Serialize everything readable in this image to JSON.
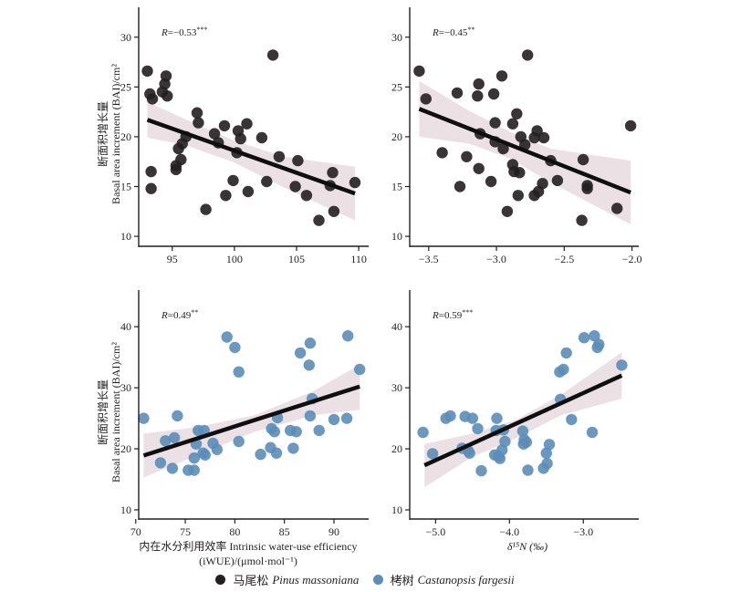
{
  "colors": {
    "pinus": "#231f20",
    "castanopsis": "#5b8db8",
    "band": "#e8dcdf",
    "line": "#0f0f0f",
    "axis": "#231f20"
  },
  "legend": [
    {
      "label_cn": "马尾松",
      "label_latin": "Pinus massoniana",
      "color_key": "pinus"
    },
    {
      "label_cn": "栲树",
      "label_latin": "Castanopsis fargesii",
      "color_key": "castanopsis"
    }
  ],
  "ylabel_cn": "断面积增长量",
  "ylabel_en": "Basal area increment (BAI)/cm²",
  "xlabel_bottom_left_line1": "内在水分利用效率 Intrinsic water-use efficiency",
  "xlabel_bottom_left_line2": "(iWUE)/(μmol·mol⁻¹)",
  "xlabel_bottom_right": "δ¹⁵N (‰)",
  "chart_data": [
    {
      "id": "top-left",
      "type": "scatter",
      "species": "Pinus massoniana",
      "color_key": "pinus",
      "annotation": "R=−0.53***",
      "r_text": "=−0.53",
      "stars": "***",
      "xlabel": "",
      "ylabel": "Basal area increment (BAI)/cm²",
      "xlim": [
        92.3,
        110.8
      ],
      "ylim": [
        9,
        33
      ],
      "xticks": [
        95,
        100,
        105,
        110
      ],
      "xtick_labels": [
        "95",
        "100",
        "105",
        "110"
      ],
      "yticks": [
        10,
        15,
        20,
        25,
        30
      ],
      "ytick_labels": [
        "10",
        "15",
        "20",
        "25",
        "30"
      ],
      "fit": {
        "x": [
          93.0,
          109.7
        ],
        "y": [
          21.7,
          14.3
        ]
      },
      "ci_band": {
        "x": [
          93.0,
          96.0,
          100.0,
          104.0,
          109.7
        ],
        "upper": [
          23.5,
          21.8,
          19.6,
          18.0,
          17.0
        ],
        "lower": [
          19.9,
          19.2,
          17.4,
          14.9,
          11.6
        ]
      },
      "points": [
        [
          93.0,
          26.6
        ],
        [
          93.2,
          24.3
        ],
        [
          93.4,
          23.8
        ],
        [
          93.3,
          16.5
        ],
        [
          93.3,
          14.8
        ],
        [
          94.2,
          24.5
        ],
        [
          94.4,
          25.3
        ],
        [
          94.5,
          26.1
        ],
        [
          94.6,
          24.1
        ],
        [
          95.3,
          17.1
        ],
        [
          95.3,
          16.7
        ],
        [
          95.5,
          18.8
        ],
        [
          95.7,
          17.7
        ],
        [
          95.8,
          19.3
        ],
        [
          96.1,
          20.0
        ],
        [
          97.0,
          22.4
        ],
        [
          97.1,
          21.4
        ],
        [
          97.7,
          12.7
        ],
        [
          98.4,
          20.3
        ],
        [
          98.7,
          19.4
        ],
        [
          99.2,
          21.1
        ],
        [
          99.3,
          14.1
        ],
        [
          99.9,
          15.6
        ],
        [
          100.2,
          18.4
        ],
        [
          100.3,
          20.6
        ],
        [
          100.5,
          19.8
        ],
        [
          101.0,
          21.3
        ],
        [
          101.1,
          14.5
        ],
        [
          102.2,
          19.9
        ],
        [
          102.6,
          15.5
        ],
        [
          103.1,
          28.2
        ],
        [
          103.6,
          18.0
        ],
        [
          104.9,
          15.0
        ],
        [
          105.1,
          17.6
        ],
        [
          105.8,
          14.1
        ],
        [
          106.8,
          11.6
        ],
        [
          107.7,
          15.1
        ],
        [
          107.9,
          16.4
        ],
        [
          108.0,
          12.5
        ],
        [
          109.7,
          15.4
        ]
      ]
    },
    {
      "id": "top-right",
      "type": "scatter",
      "species": "Pinus massoniana",
      "color_key": "pinus",
      "annotation": "R=−0.45**",
      "r_text": "=−0.45",
      "stars": "**",
      "xlabel": "",
      "ylabel": "",
      "xlim": [
        -3.64,
        -1.95
      ],
      "ylim": [
        9,
        33
      ],
      "xticks": [
        -3.5,
        -3.0,
        -2.5,
        -2.0
      ],
      "xtick_labels": [
        "−3.5",
        "−3.0",
        "−2.5",
        "−2.0"
      ],
      "yticks": [
        10,
        15,
        20,
        25,
        30
      ],
      "ytick_labels": [
        "10",
        "15",
        "20",
        "25",
        "30"
      ],
      "fit": {
        "x": [
          -3.57,
          -2.01
        ],
        "y": [
          22.8,
          14.4
        ]
      },
      "ci_band": {
        "x": [
          -3.57,
          -3.2,
          -2.9,
          -2.6,
          -2.01
        ],
        "upper": [
          25.6,
          22.6,
          20.5,
          18.8,
          17.6
        ],
        "lower": [
          20.0,
          19.3,
          17.8,
          15.4,
          11.2
        ]
      },
      "points": [
        [
          -3.57,
          26.6
        ],
        [
          -3.52,
          23.8
        ],
        [
          -3.4,
          18.4
        ],
        [
          -3.29,
          24.4
        ],
        [
          -3.27,
          15.0
        ],
        [
          -3.22,
          18.0
        ],
        [
          -3.14,
          24.1
        ],
        [
          -3.13,
          25.3
        ],
        [
          -3.13,
          16.8
        ],
        [
          -3.12,
          20.3
        ],
        [
          -3.04,
          15.5
        ],
        [
          -3.02,
          24.3
        ],
        [
          -3.01,
          21.4
        ],
        [
          -3.01,
          19.5
        ],
        [
          -2.96,
          26.1
        ],
        [
          -2.95,
          18.8
        ],
        [
          -2.92,
          12.5
        ],
        [
          -2.88,
          21.3
        ],
        [
          -2.88,
          17.2
        ],
        [
          -2.87,
          16.5
        ],
        [
          -2.85,
          22.3
        ],
        [
          -2.84,
          14.1
        ],
        [
          -2.83,
          16.4
        ],
        [
          -2.82,
          20.0
        ],
        [
          -2.79,
          19.2
        ],
        [
          -2.77,
          28.2
        ],
        [
          -2.72,
          14.1
        ],
        [
          -2.72,
          19.9
        ],
        [
          -2.7,
          20.6
        ],
        [
          -2.69,
          14.5
        ],
        [
          -2.66,
          15.3
        ],
        [
          -2.65,
          19.9
        ],
        [
          -2.6,
          17.6
        ],
        [
          -2.55,
          15.6
        ],
        [
          -2.37,
          11.6
        ],
        [
          -2.36,
          17.7
        ],
        [
          -2.33,
          15.1
        ],
        [
          -2.33,
          14.8
        ],
        [
          -2.11,
          12.8
        ],
        [
          -2.01,
          21.1
        ]
      ]
    },
    {
      "id": "bottom-left",
      "type": "scatter",
      "species": "Castanopsis fargesii",
      "color_key": "castanopsis",
      "annotation": "R=0.49**",
      "r_text": "=0.49",
      "stars": "**",
      "xlabel": "内在水分利用效率 Intrinsic water-use efficiency (iWUE)/(μmol·mol⁻¹)",
      "ylabel": "Basal area increment (BAI)/cm²",
      "xlim": [
        70.3,
        93.5
      ],
      "ylim": [
        8.5,
        46
      ],
      "xticks": [
        70,
        75,
        80,
        85,
        90
      ],
      "xtick_labels": [
        "70",
        "75",
        "80",
        "85",
        "90"
      ],
      "yticks": [
        10,
        20,
        30,
        40
      ],
      "ytick_labels": [
        "10",
        "20",
        "30",
        "40"
      ],
      "fit": {
        "x": [
          70.8,
          92.6
        ],
        "y": [
          18.9,
          30.2
        ]
      },
      "ci_band": {
        "x": [
          70.8,
          76.0,
          82.0,
          88.0,
          92.6
        ],
        "upper": [
          22.5,
          23.5,
          25.5,
          29.5,
          33.8
        ],
        "lower": [
          15.3,
          18.8,
          22.8,
          25.5,
          26.4
        ]
      },
      "points": [
        [
          70.8,
          25.0
        ],
        [
          72.5,
          17.7
        ],
        [
          73.0,
          21.3
        ],
        [
          73.7,
          16.8
        ],
        [
          73.9,
          21.8
        ],
        [
          74.2,
          25.4
        ],
        [
          75.3,
          16.5
        ],
        [
          75.9,
          16.5
        ],
        [
          75.9,
          18.5
        ],
        [
          76.1,
          20.8
        ],
        [
          76.3,
          23.0
        ],
        [
          76.8,
          19.3
        ],
        [
          76.9,
          23.0
        ],
        [
          77.0,
          19.0
        ],
        [
          77.8,
          20.9
        ],
        [
          78.2,
          19.9
        ],
        [
          79.2,
          38.3
        ],
        [
          80.0,
          36.6
        ],
        [
          80.4,
          32.6
        ],
        [
          80.4,
          21.2
        ],
        [
          82.6,
          19.1
        ],
        [
          83.6,
          20.2
        ],
        [
          83.7,
          23.3
        ],
        [
          84.0,
          22.8
        ],
        [
          84.2,
          19.3
        ],
        [
          84.3,
          25.1
        ],
        [
          85.6,
          23.0
        ],
        [
          85.9,
          20.1
        ],
        [
          86.2,
          22.8
        ],
        [
          86.6,
          35.7
        ],
        [
          87.5,
          33.7
        ],
        [
          87.6,
          37.3
        ],
        [
          87.6,
          25.4
        ],
        [
          87.8,
          28.2
        ],
        [
          88.5,
          23.0
        ],
        [
          90.0,
          24.8
        ],
        [
          91.3,
          25.0
        ],
        [
          91.4,
          38.5
        ],
        [
          92.6,
          33.0
        ]
      ]
    },
    {
      "id": "bottom-right",
      "type": "scatter",
      "species": "Castanopsis fargesii",
      "color_key": "castanopsis",
      "annotation": "R=0.59***",
      "r_text": "=0.59",
      "stars": "***",
      "xlabel": "δ¹⁵N (‰)",
      "ylabel": "",
      "xlim": [
        -5.35,
        -2.25
      ],
      "ylim": [
        8.5,
        46
      ],
      "xticks": [
        -5.0,
        -4.0,
        -3.0
      ],
      "xtick_labels": [
        "−5.0",
        "−4.0",
        "−3.0"
      ],
      "yticks": [
        10,
        20,
        30,
        40
      ],
      "ytick_labels": [
        "10",
        "20",
        "30",
        "40"
      ],
      "fit": {
        "x": [
          -5.15,
          -2.48
        ],
        "y": [
          17.3,
          32.0
        ]
      },
      "ci_band": {
        "x": [
          -5.15,
          -4.5,
          -3.9,
          -3.3,
          -2.48
        ],
        "upper": [
          20.8,
          22.5,
          24.8,
          28.9,
          35.8
        ],
        "lower": [
          13.7,
          18.7,
          21.8,
          25.5,
          28.2
        ]
      },
      "points": [
        [
          -5.17,
          22.7
        ],
        [
          -5.04,
          19.2
        ],
        [
          -4.86,
          25.0
        ],
        [
          -4.8,
          25.4
        ],
        [
          -4.64,
          20.1
        ],
        [
          -4.6,
          25.3
        ],
        [
          -4.56,
          19.7
        ],
        [
          -4.54,
          19.3
        ],
        [
          -4.5,
          25.0
        ],
        [
          -4.43,
          23.3
        ],
        [
          -4.38,
          16.4
        ],
        [
          -4.2,
          19.0
        ],
        [
          -4.18,
          23.0
        ],
        [
          -4.17,
          25.0
        ],
        [
          -4.15,
          18.8
        ],
        [
          -4.13,
          18.4
        ],
        [
          -4.1,
          19.8
        ],
        [
          -4.08,
          23.1
        ],
        [
          -4.06,
          21.2
        ],
        [
          -3.82,
          22.9
        ],
        [
          -3.81,
          20.8
        ],
        [
          -3.8,
          21.5
        ],
        [
          -3.77,
          21.1
        ],
        [
          -3.75,
          16.5
        ],
        [
          -3.54,
          16.8
        ],
        [
          -3.49,
          17.6
        ],
        [
          -3.5,
          19.3
        ],
        [
          -3.46,
          20.7
        ],
        [
          -3.32,
          32.6
        ],
        [
          -3.31,
          28.1
        ],
        [
          -3.27,
          33.0
        ],
        [
          -3.23,
          35.7
        ],
        [
          -3.16,
          24.8
        ],
        [
          -2.99,
          38.2
        ],
        [
          -2.88,
          22.7
        ],
        [
          -2.85,
          38.5
        ],
        [
          -2.81,
          36.6
        ],
        [
          -2.79,
          37.1
        ],
        [
          -2.48,
          33.7
        ]
      ]
    }
  ]
}
